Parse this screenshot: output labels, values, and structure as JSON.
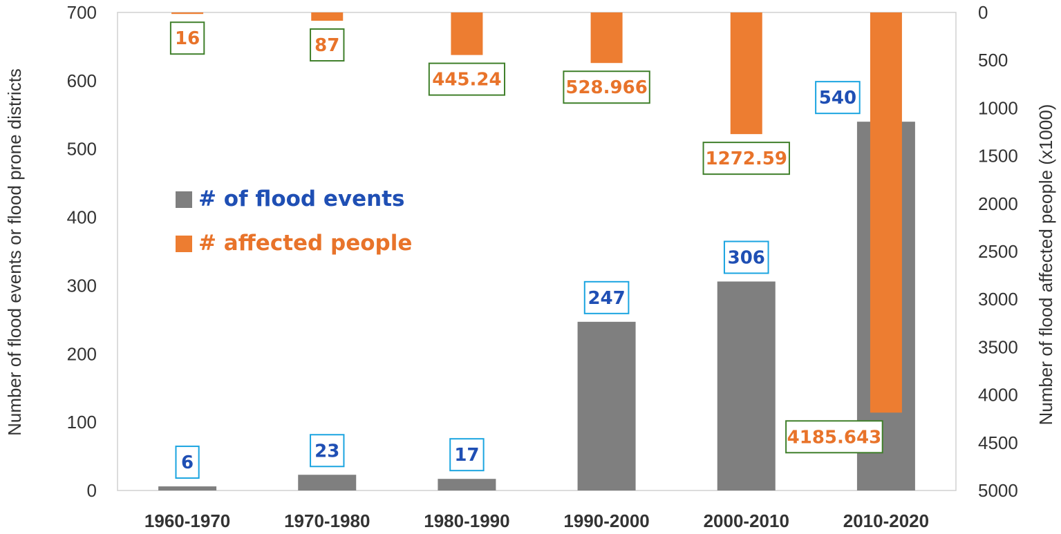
{
  "colors": {
    "events": "#7f7f7f",
    "affected": "#ed7d31",
    "events_label_text": "#1f4fb4",
    "events_label_border": "#1aa4e0",
    "affected_label_text": "#e8732a",
    "affected_label_border": "#3f7f2a",
    "axis_text": "#333333",
    "axis_line": "#d0d0d0"
  },
  "chart_data": {
    "type": "bar",
    "categories": [
      "1960-1970",
      "1970-1980",
      "1980-1990",
      "1990-2000",
      "2000-2010",
      "2010-2020"
    ],
    "series": [
      {
        "name": "# of flood events",
        "axis": "left",
        "values": [
          6,
          23,
          17,
          247,
          306,
          540
        ],
        "labels": [
          "6",
          "23",
          "17",
          "247",
          "306",
          "540"
        ]
      },
      {
        "name": "# affected people",
        "axis": "right",
        "direction": "top-down",
        "values": [
          16,
          87,
          445.24,
          528.966,
          1272.59,
          4185.643
        ],
        "labels": [
          "16",
          "87",
          "445.24",
          "528.966",
          "1272.59",
          "4185.643"
        ]
      }
    ],
    "ylabel_left": "Number of flood events or flood prone districts",
    "ylabel_right": "Number of flood affected people (x1000)",
    "ylim_left": [
      0,
      700
    ],
    "yticks_left": [
      "0",
      "100",
      "200",
      "300",
      "400",
      "500",
      "600",
      "700"
    ],
    "ylim_right": [
      5000,
      0
    ],
    "yticks_right": [
      "0",
      "500",
      "1000",
      "1500",
      "2000",
      "2500",
      "3000",
      "3500",
      "4000",
      "4500",
      "5000"
    ],
    "legend": [
      {
        "label": "# of flood events",
        "series": 0
      },
      {
        "label": "# affected people",
        "series": 1
      }
    ],
    "legend_position": "left-middle",
    "grid": false
  }
}
